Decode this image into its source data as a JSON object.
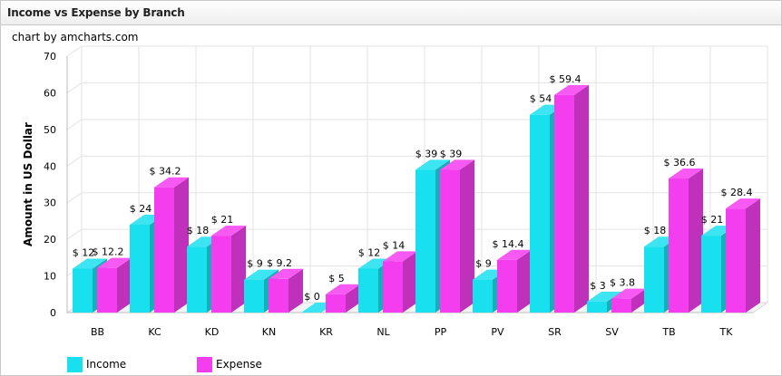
{
  "header": {
    "title": "Income vs Expense by Branch"
  },
  "credit": "chart by amcharts.com",
  "colors": {
    "income": "#19e0ee",
    "expense": "#f53df0"
  },
  "chart_data": {
    "type": "bar",
    "title": "Income vs Expense by Branch",
    "xlabel": "",
    "ylabel": "Amount in US Dollar",
    "ylim": [
      0,
      70
    ],
    "yticks": [
      0,
      10,
      20,
      30,
      40,
      50,
      60,
      70
    ],
    "grid": true,
    "legend_position": "bottom-left",
    "value_prefix": "$ ",
    "categories": [
      "BB",
      "KC",
      "KD",
      "KN",
      "KR",
      "NL",
      "PP",
      "PV",
      "SR",
      "SV",
      "TB",
      "TK"
    ],
    "series": [
      {
        "name": "Income",
        "color": "#19e0ee",
        "values": [
          12,
          24,
          18,
          9,
          0,
          12,
          39,
          9,
          54,
          3,
          18,
          21
        ]
      },
      {
        "name": "Expense",
        "color": "#f53df0",
        "values": [
          12.2,
          34.2,
          21,
          9.2,
          5,
          14,
          39,
          14.4,
          59.4,
          3.8,
          36.6,
          28.4
        ]
      }
    ]
  }
}
